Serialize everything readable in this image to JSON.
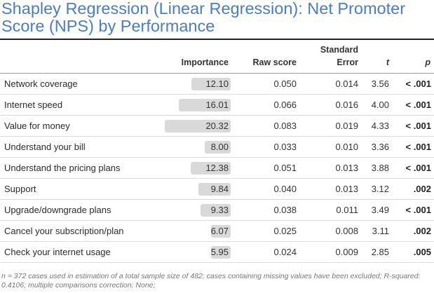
{
  "title": "Shapley Regression (Linear Regression): Net Promoter Score (NPS) by Performance",
  "headers": {
    "importance": "Importance",
    "raw_score": "Raw score",
    "std_error_line1": "Standard",
    "std_error_line2": "Error",
    "t": "t",
    "p": "p"
  },
  "rows": [
    {
      "label": "Network coverage",
      "importance": "12.10",
      "importance_value": 12.1,
      "raw_score": "0.050",
      "std_error": "0.014",
      "t": "3.56",
      "p": "< .001"
    },
    {
      "label": "Internet speed",
      "importance": "16.01",
      "importance_value": 16.01,
      "raw_score": "0.066",
      "std_error": "0.016",
      "t": "4.00",
      "p": "< .001"
    },
    {
      "label": "Value for money",
      "importance": "20.32",
      "importance_value": 20.32,
      "raw_score": "0.083",
      "std_error": "0.019",
      "t": "4.33",
      "p": "< .001"
    },
    {
      "label": "Understand your bill",
      "importance": "8.00",
      "importance_value": 8.0,
      "raw_score": "0.033",
      "std_error": "0.010",
      "t": "3.36",
      "p": "< .001"
    },
    {
      "label": "Understand the pricing plans",
      "importance": "12.38",
      "importance_value": 12.38,
      "raw_score": "0.051",
      "std_error": "0.013",
      "t": "3.88",
      "p": "< .001"
    },
    {
      "label": "Support",
      "importance": "9.84",
      "importance_value": 9.84,
      "raw_score": "0.040",
      "std_error": "0.013",
      "t": "3.12",
      "p": ".002"
    },
    {
      "label": "Upgrade/downgrade plans",
      "importance": "9.33",
      "importance_value": 9.33,
      "raw_score": "0.038",
      "std_error": "0.011",
      "t": "3.49",
      "p": "< .001"
    },
    {
      "label": "Cancel your subscription/plan",
      "importance": "6.07",
      "importance_value": 6.07,
      "raw_score": "0.025",
      "std_error": "0.008",
      "t": "3.11",
      "p": ".002"
    },
    {
      "label": "Check your internet usage",
      "importance": "5.95",
      "importance_value": 5.95,
      "raw_score": "0.024",
      "std_error": "0.009",
      "t": "2.85",
      "p": ".005"
    }
  ],
  "colors": {
    "title": "#4a7ebf",
    "importance_bar": "#d9d9d9",
    "footnote": "#777777"
  },
  "footnote": "n = 372 cases used in estimation of a total sample size of 482; cases containing missing values have been excluded; R-squared: 0.4106; multiple comparisons correction: None;"
}
